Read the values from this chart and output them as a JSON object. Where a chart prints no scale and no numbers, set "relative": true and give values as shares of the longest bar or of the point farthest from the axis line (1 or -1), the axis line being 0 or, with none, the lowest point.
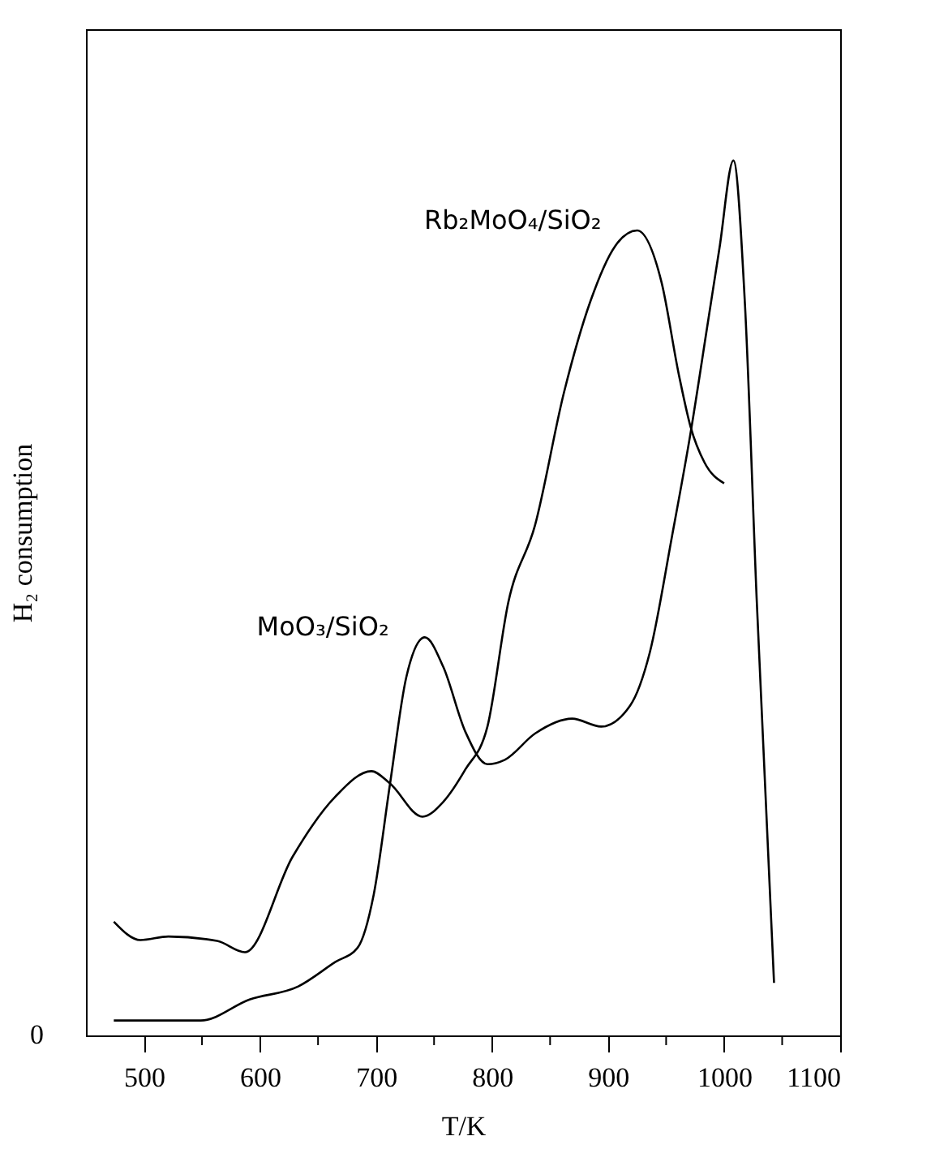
{
  "chart_data": {
    "type": "line",
    "relative": true,
    "xlabel": "T/K",
    "ylabel": "H₂ consumption",
    "xlim": [
      450,
      1100
    ],
    "xticks": [
      500,
      {
        "value": 550,
        "label": null
      },
      600,
      {
        "value": 650,
        "label": null
      },
      700,
      {
        "value": 750,
        "label": null
      },
      800,
      {
        "value": 850,
        "label": null
      },
      900,
      {
        "value": 950,
        "label": null
      },
      1000,
      {
        "value": 1050,
        "label": null
      },
      1100
    ],
    "grid": false,
    "legend": false,
    "marker": "none",
    "line_style": "solid",
    "annotations": [
      "0"
    ],
    "series": [
      {
        "name": "Rb₂MoO₄/SiO₂",
        "color": "#000000",
        "x": [
          474,
          497,
          521,
          563,
          587,
          628,
          665,
          696,
          712,
          740,
          758,
          777,
          796,
          814,
          837,
          862,
          885,
          906,
          925,
          946,
          961,
          971,
          983,
          1000
        ],
        "values": [
          0.13,
          0.109,
          0.113,
          0.108,
          0.095,
          0.204,
          0.273,
          0.302,
          0.288,
          0.25,
          0.267,
          0.304,
          0.353,
          0.495,
          0.583,
          0.735,
          0.84,
          0.902,
          0.92,
          0.861,
          0.755,
          0.696,
          0.655,
          0.631
        ]
      },
      {
        "name": "MoO₃/SiO₂",
        "color": "#000000",
        "x": [
          474,
          549,
          591,
          633,
          665,
          684,
          698,
          712,
          726,
          742,
          758,
          777,
          796,
          811,
          837,
          869,
          894,
          919,
          936,
          955,
          971,
          986,
          996,
          1008,
          1018,
          1028,
          1043
        ],
        "values": [
          0.017,
          0.017,
          0.041,
          0.056,
          0.084,
          0.1,
          0.161,
          0.287,
          0.409,
          0.455,
          0.421,
          0.347,
          0.31,
          0.315,
          0.345,
          0.362,
          0.353,
          0.377,
          0.438,
          0.57,
          0.688,
          0.815,
          0.9,
          1.0,
          0.834,
          0.5,
          0.06
        ]
      }
    ]
  }
}
